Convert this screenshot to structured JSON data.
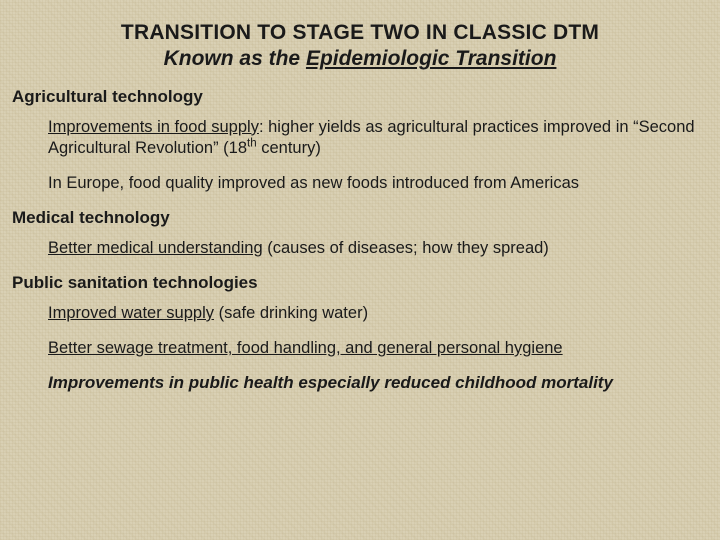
{
  "colors": {
    "background_base": "#d9d0b4",
    "text": "#1a1a1a",
    "texture_line1": "rgba(190,175,135,0.18)",
    "texture_line2": "rgba(170,155,110,0.08)"
  },
  "typography": {
    "family": "Verdana, Geneva, sans-serif",
    "title_fontsize_pt": 16,
    "heading_fontsize_pt": 13,
    "body_fontsize_pt": 12.5
  },
  "title": {
    "line1": "TRANSITION TO STAGE TWO IN CLASSIC DTM",
    "line2_prefix": "Known as the ",
    "line2_underlined": "Epidemiologic Transition"
  },
  "sections": [
    {
      "heading": "Agricultural technology",
      "paragraphs": [
        {
          "lead_underlined": "Improvements in food supply",
          "rest_before_sup": ": higher yields as agricultural practices improved in “Second Agricultural Revolution” (18",
          "sup": "th",
          "rest_after_sup": " century)"
        },
        {
          "lead_underlined": "",
          "rest_before_sup": "In Europe, food quality improved as new foods introduced from Americas",
          "sup": "",
          "rest_after_sup": ""
        }
      ]
    },
    {
      "heading": "Medical technology",
      "paragraphs": [
        {
          "lead_underlined": "Better medical understanding",
          "rest_before_sup": " (causes of diseases; how they spread)",
          "sup": "",
          "rest_after_sup": ""
        }
      ]
    },
    {
      "heading": "Public sanitation technologies",
      "paragraphs": [
        {
          "lead_underlined": "Improved water supply",
          "rest_before_sup": " (safe drinking water)",
          "sup": "",
          "rest_after_sup": ""
        },
        {
          "lead_underlined": "Better sewage treatment, food handling, and general personal hygiene",
          "rest_before_sup": "",
          "sup": "",
          "rest_after_sup": ""
        }
      ]
    }
  ],
  "conclusion": "Improvements in public health especially reduced childhood mortality"
}
